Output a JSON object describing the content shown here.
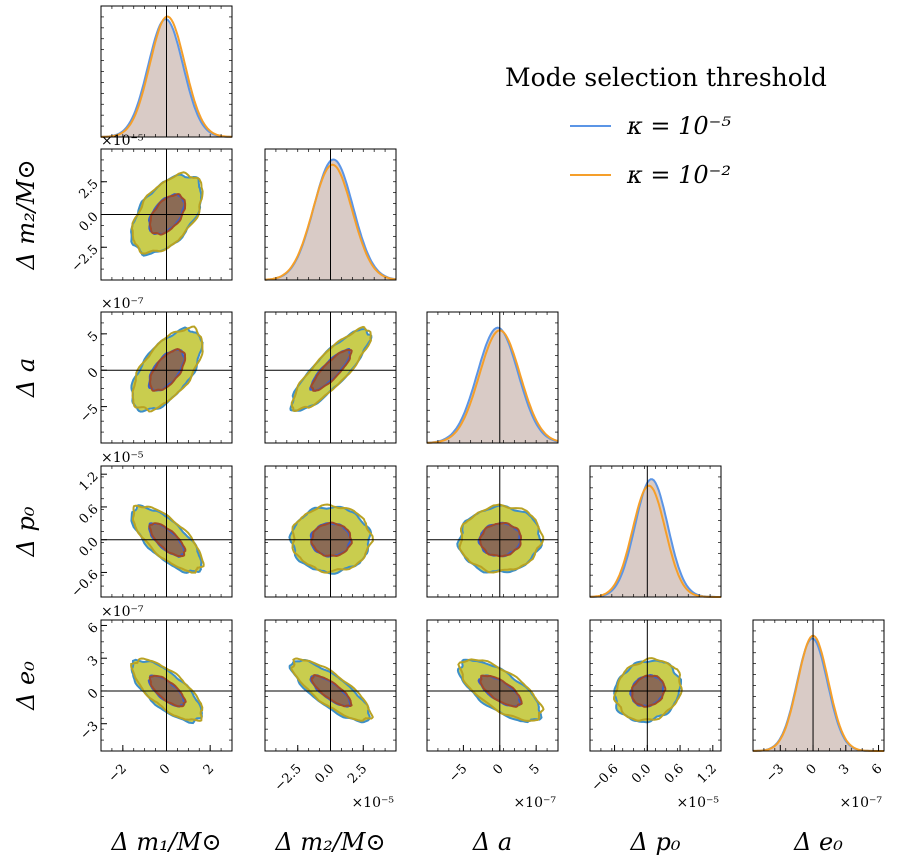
{
  "colors": {
    "kappa_small": "#5B95E6",
    "kappa_large": "#F59F2A",
    "contour_inner_fill": "#8B6B55",
    "contour_outer_fill": "#C9CD4E",
    "hist_fill": "#D9CBC6",
    "contour_edge_a": "#3D8FC8",
    "contour_edge_b": "#B9A223",
    "inner_edge_a": "#3A5FCC",
    "inner_edge_b": "#A04A2A"
  },
  "legend": {
    "title": "Mode selection threshold",
    "entries": [
      {
        "label": "κ = 10⁻⁵",
        "color_key": "kappa_small"
      },
      {
        "label": "κ = 10⁻²",
        "color_key": "kappa_large"
      }
    ]
  },
  "chart_data": {
    "type": "corner",
    "parameters": [
      {
        "name": "Δm1/M⊙",
        "label": "Δ m₁/M⊙",
        "range": [
          -3.0,
          3.0
        ],
        "ticks": [
          "−2",
          "0",
          "2"
        ],
        "tick_values": [
          -2,
          0,
          2
        ],
        "exponent": "",
        "std": 0.8
      },
      {
        "name": "Δm2/M⊙",
        "label": "Δ m₂/M⊙",
        "range": [
          -5.0,
          5.0
        ],
        "ticks": [
          "−2.5",
          "0.0",
          "2.5"
        ],
        "tick_values": [
          -2.5,
          0.0,
          2.5
        ],
        "exponent": "×10⁻⁵",
        "std": 1.5
      },
      {
        "name": "Δa",
        "label": "Δ a",
        "range": [
          -10.0,
          8.0
        ],
        "ticks": [
          "−5",
          "0",
          "5"
        ],
        "tick_values": [
          -5,
          0,
          5
        ],
        "exponent": "×10⁻⁷",
        "std": 2.8
      },
      {
        "name": "Δp0",
        "label": "Δ p₀",
        "range": [
          -1.05,
          1.35
        ],
        "ticks": [
          "−0.6",
          "0.0",
          "0.6",
          "1.2"
        ],
        "tick_values": [
          -0.6,
          0.0,
          0.6,
          1.2
        ],
        "exponent": "×10⁻⁵",
        "std": 0.3
      },
      {
        "name": "Δe0",
        "label": "Δ e₀",
        "range": [
          -5.5,
          6.5
        ],
        "ticks": [
          "−3",
          "0",
          "3",
          "6"
        ],
        "tick_values": [
          -3,
          0,
          3,
          6
        ],
        "exponent": "×10⁻⁷",
        "std": 1.4
      }
    ],
    "y_exponents": [
      "×10⁻⁵",
      "×10⁻⁷",
      "×10⁻⁵",
      "×10⁻⁷"
    ],
    "truth_values": [
      0,
      0,
      0,
      0,
      0
    ],
    "series": [
      {
        "name": "κ = 10⁻⁵",
        "color_key": "kappa_small",
        "marginal_mean_shift": [
          -0.05,
          0.15,
          -0.1,
          0.25,
          -0.05
        ],
        "peak": [
          0.9,
          0.92,
          0.88,
          0.9,
          0.86
        ]
      },
      {
        "name": "κ = 10⁻²",
        "color_key": "kappa_large",
        "marginal_mean_shift": [
          0.05,
          0.1,
          0.0,
          0.1,
          0.0
        ],
        "peak": [
          0.92,
          0.88,
          0.86,
          0.85,
          0.88
        ]
      }
    ],
    "correlations": [
      {
        "row": 1,
        "col": 0,
        "rho": 0.5
      },
      {
        "row": 2,
        "col": 0,
        "rho": 0.6
      },
      {
        "row": 2,
        "col": 1,
        "rho": 0.85
      },
      {
        "row": 3,
        "col": 0,
        "rho": -0.72
      },
      {
        "row": 3,
        "col": 1,
        "rho": 0.0
      },
      {
        "row": 3,
        "col": 2,
        "rho": 0.05
      },
      {
        "row": 4,
        "col": 0,
        "rho": -0.72
      },
      {
        "row": 4,
        "col": 1,
        "rho": -0.8
      },
      {
        "row": 4,
        "col": 2,
        "rho": -0.7
      },
      {
        "row": 4,
        "col": 3,
        "rho": 0.15
      }
    ],
    "contour_levels_sigma": [
      1.0,
      2.0
    ]
  }
}
